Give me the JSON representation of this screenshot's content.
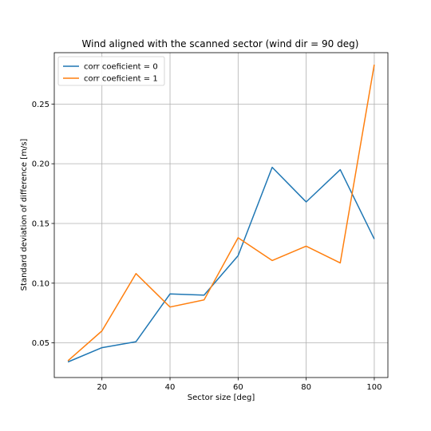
{
  "chart_data": {
    "type": "line",
    "title": "Wind aligned with the scanned sector (wind dir = 90 deg)",
    "xlabel": "Sector size [deg]",
    "ylabel": "Standard deviation of difference [m/s]",
    "xlim": [
      6,
      104
    ],
    "ylim": [
      0.021,
      0.293
    ],
    "xticks": [
      20,
      40,
      60,
      80,
      100
    ],
    "yticks": [
      0.05,
      0.1,
      0.15,
      0.2,
      0.25
    ],
    "xtick_labels": [
      "20",
      "40",
      "60",
      "80",
      "100"
    ],
    "ytick_labels": [
      "0.05",
      "0.10",
      "0.15",
      "0.20",
      "0.25"
    ],
    "grid": true,
    "legend_position": "top-left",
    "x": [
      10,
      20,
      30,
      40,
      50,
      60,
      70,
      80,
      90,
      100
    ],
    "series": [
      {
        "name": "corr coeficient = 0",
        "color": "#1f77b4",
        "values": [
          0.034,
          0.046,
          0.051,
          0.091,
          0.09,
          0.123,
          0.197,
          0.168,
          0.195,
          0.137
        ]
      },
      {
        "name": "corr coeficient = 1",
        "color": "#ff7f0e",
        "values": [
          0.035,
          0.06,
          0.108,
          0.08,
          0.086,
          0.138,
          0.119,
          0.131,
          0.117,
          0.283
        ]
      }
    ]
  }
}
